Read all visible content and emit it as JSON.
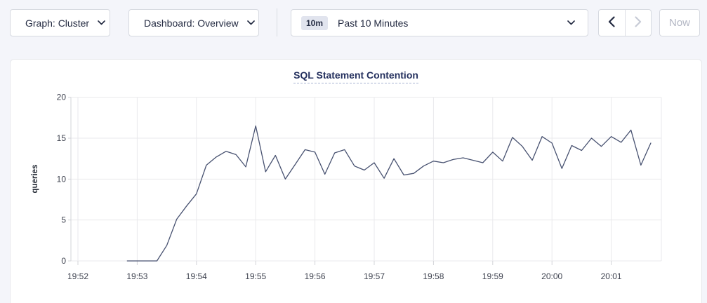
{
  "toolbar": {
    "graph_dropdown": {
      "label": "Graph: Cluster"
    },
    "dashboard_dropdown": {
      "label": "Dashboard: Overview"
    },
    "time_range": {
      "badge": "10m",
      "label": "Past 10 Minutes"
    },
    "now_label": "Now"
  },
  "chart_data": {
    "type": "line",
    "title": "SQL Statement Contention",
    "xlabel": "",
    "ylabel": "queries",
    "ylim": [
      0,
      20
    ],
    "y_ticks": [
      0,
      5,
      10,
      15,
      20
    ],
    "x_ticks": [
      "19:52",
      "19:53",
      "19:54",
      "19:55",
      "19:56",
      "19:57",
      "19:58",
      "19:59",
      "20:00",
      "20:01"
    ],
    "grid": true,
    "legend": "none",
    "line_color": "#475170",
    "grid_color": "#e9e9ec",
    "axis_color": "#d3d4d9",
    "tick_label_color": "#3f4350",
    "points": [
      [
        "19:52:50",
        0
      ],
      [
        "19:53:00",
        0
      ],
      [
        "19:53:10",
        0
      ],
      [
        "19:53:20",
        0
      ],
      [
        "19:53:30",
        1.9
      ],
      [
        "19:53:40",
        5.1
      ],
      [
        "19:53:50",
        6.7
      ],
      [
        "19:54:00",
        8.2
      ],
      [
        "19:54:10",
        11.7
      ],
      [
        "19:54:20",
        12.7
      ],
      [
        "19:54:30",
        13.4
      ],
      [
        "19:54:40",
        13.0
      ],
      [
        "19:54:50",
        11.5
      ],
      [
        "19:55:00",
        16.5
      ],
      [
        "19:55:10",
        10.9
      ],
      [
        "19:55:20",
        12.9
      ],
      [
        "19:55:30",
        10.0
      ],
      [
        "19:55:40",
        11.8
      ],
      [
        "19:55:50",
        13.6
      ],
      [
        "19:56:00",
        13.3
      ],
      [
        "19:56:10",
        10.6
      ],
      [
        "19:56:20",
        13.2
      ],
      [
        "19:56:30",
        13.6
      ],
      [
        "19:56:40",
        11.6
      ],
      [
        "19:56:50",
        11.1
      ],
      [
        "19:57:00",
        12.0
      ],
      [
        "19:57:10",
        10.1
      ],
      [
        "19:57:20",
        12.5
      ],
      [
        "19:57:30",
        10.5
      ],
      [
        "19:57:40",
        10.7
      ],
      [
        "19:57:50",
        11.6
      ],
      [
        "19:58:00",
        12.2
      ],
      [
        "19:58:10",
        12.0
      ],
      [
        "19:58:20",
        12.4
      ],
      [
        "19:58:30",
        12.6
      ],
      [
        "19:58:40",
        12.3
      ],
      [
        "19:58:50",
        12.0
      ],
      [
        "19:59:00",
        13.3
      ],
      [
        "19:59:10",
        12.2
      ],
      [
        "19:59:20",
        15.1
      ],
      [
        "19:59:30",
        14.0
      ],
      [
        "19:59:40",
        12.3
      ],
      [
        "19:59:50",
        15.2
      ],
      [
        "20:00:00",
        14.4
      ],
      [
        "20:00:10",
        11.3
      ],
      [
        "20:00:20",
        14.1
      ],
      [
        "20:00:30",
        13.5
      ],
      [
        "20:00:40",
        15.0
      ],
      [
        "20:00:50",
        14.0
      ],
      [
        "20:01:00",
        15.2
      ],
      [
        "20:01:10",
        14.5
      ],
      [
        "20:01:20",
        16.0
      ],
      [
        "20:01:30",
        11.7
      ],
      [
        "20:01:40",
        14.4
      ]
    ]
  }
}
